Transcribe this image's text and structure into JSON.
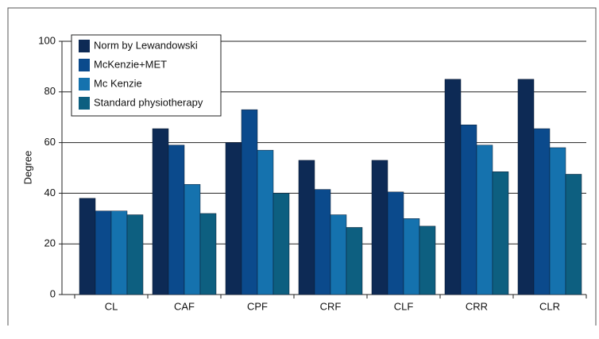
{
  "chart_data": {
    "type": "bar",
    "y_label": "Degree",
    "categories": [
      "CL",
      "CAF",
      "CPF",
      "CRF",
      "CLF",
      "CRR",
      "CLR"
    ],
    "series": [
      {
        "name": "Norm by Lewandowski",
        "color": "#0d2a55",
        "values": [
          38,
          65.5,
          60,
          53,
          53,
          85,
          85
        ]
      },
      {
        "name": "McKenzie+MET",
        "color": "#0b4a8c",
        "values": [
          33,
          59,
          73,
          41.5,
          40.5,
          67,
          65.5
        ]
      },
      {
        "name": "Mc Kenzie",
        "color": "#1572ae",
        "values": [
          33,
          43.5,
          57,
          31.5,
          30,
          59,
          58
        ]
      },
      {
        "name": "Standard physiotherapy",
        "color": "#0d5f80",
        "values": [
          31.5,
          32,
          40,
          26.5,
          27,
          48.5,
          47.5
        ]
      }
    ],
    "ylim": [
      0,
      100
    ],
    "yticks": [
      0,
      20,
      40,
      60,
      80,
      100
    ],
    "grid": true,
    "legend": "upper left"
  }
}
